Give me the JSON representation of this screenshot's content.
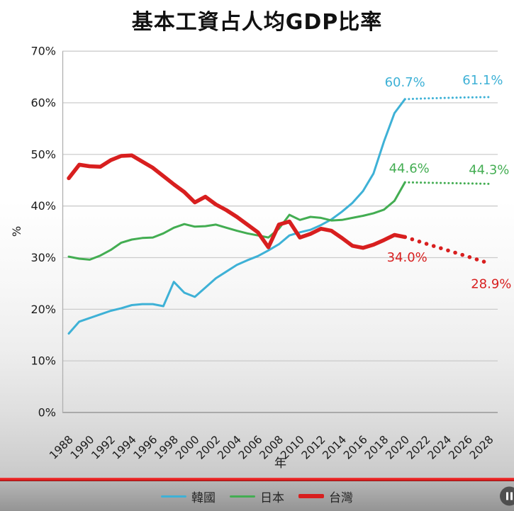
{
  "chart_data": {
    "type": "line",
    "title": "基本工資占人均GDP比率",
    "xlabel": "年",
    "ylabel": "%",
    "xlim": [
      1988,
      2028
    ],
    "ylim": [
      0,
      70
    ],
    "grid": "horizontal",
    "legend_position": "bottom",
    "x_ticks": [
      1988,
      1990,
      1992,
      1994,
      1996,
      1998,
      2000,
      2002,
      2004,
      2006,
      2008,
      2010,
      2012,
      2014,
      2016,
      2018,
      2020,
      2022,
      2024,
      2026,
      2028
    ],
    "y_ticks": [
      {
        "value": 0,
        "label": "0%"
      },
      {
        "value": 10,
        "label": "10%"
      },
      {
        "value": 20,
        "label": "20%"
      },
      {
        "value": 30,
        "label": "30%"
      },
      {
        "value": 40,
        "label": "40%"
      },
      {
        "value": 50,
        "label": "50%"
      },
      {
        "value": 60,
        "label": "60%"
      },
      {
        "value": 70,
        "label": "70%"
      }
    ],
    "series": [
      {
        "id": "korea",
        "name": "韓國",
        "color": "#3eb1d6",
        "line_width": 3,
        "years": [
          1988,
          1989,
          1990,
          1991,
          1992,
          1993,
          1994,
          1995,
          1996,
          1997,
          1998,
          1999,
          2000,
          2001,
          2002,
          2003,
          2004,
          2005,
          2006,
          2007,
          2008,
          2009,
          2010,
          2011,
          2012,
          2013,
          2014,
          2015,
          2016,
          2017,
          2018,
          2019,
          2020
        ],
        "values": [
          15.3,
          17.6,
          18.3,
          19.0,
          19.7,
          20.2,
          20.8,
          21.0,
          21.0,
          20.6,
          25.3,
          23.2,
          22.4,
          24.2,
          26.0,
          27.3,
          28.6,
          29.5,
          30.3,
          31.4,
          32.6,
          34.3,
          34.9,
          35.4,
          36.3,
          37.4,
          38.9,
          40.6,
          42.9,
          46.3,
          52.5,
          58.0,
          60.7
        ],
        "projection_style": "dotted",
        "projection_years": [
          2020,
          2022,
          2024,
          2026,
          2028
        ],
        "projection_values": [
          60.7,
          60.85,
          60.95,
          61.05,
          61.1
        ],
        "end_label": "60.7%",
        "projection_end_label": "61.1%"
      },
      {
        "id": "japan",
        "name": "日本",
        "color": "#43ad52",
        "line_width": 3,
        "years": [
          1988,
          1989,
          1990,
          1991,
          1992,
          1993,
          1994,
          1995,
          1996,
          1997,
          1998,
          1999,
          2000,
          2001,
          2002,
          2003,
          2004,
          2005,
          2006,
          2007,
          2008,
          2009,
          2010,
          2011,
          2012,
          2013,
          2014,
          2015,
          2016,
          2017,
          2018,
          2019,
          2020
        ],
        "values": [
          30.2,
          29.8,
          29.6,
          30.4,
          31.5,
          32.9,
          33.5,
          33.8,
          33.9,
          34.7,
          35.8,
          36.5,
          36.0,
          36.1,
          36.4,
          35.8,
          35.2,
          34.7,
          34.3,
          33.9,
          35.6,
          38.3,
          37.3,
          37.9,
          37.7,
          37.2,
          37.3,
          37.7,
          38.1,
          38.6,
          39.3,
          41.0,
          44.6
        ],
        "projection_style": "dotted",
        "projection_years": [
          2020,
          2022,
          2024,
          2026,
          2028
        ],
        "projection_values": [
          44.6,
          44.52,
          44.45,
          44.38,
          44.3
        ],
        "end_label": "44.6%",
        "projection_end_label": "44.3%"
      },
      {
        "id": "taiwan",
        "name": "台灣",
        "color": "#d81f1f",
        "line_width": 5.5,
        "years": [
          1988,
          1989,
          1990,
          1991,
          1992,
          1993,
          1994,
          1995,
          1996,
          1997,
          1998,
          1999,
          2000,
          2001,
          2002,
          2003,
          2004,
          2005,
          2006,
          2007,
          2008,
          2009,
          2010,
          2011,
          2012,
          2013,
          2014,
          2015,
          2016,
          2017,
          2018,
          2019,
          2020
        ],
        "values": [
          45.4,
          48.0,
          47.7,
          47.6,
          48.9,
          49.7,
          49.8,
          48.6,
          47.4,
          45.8,
          44.2,
          42.7,
          40.7,
          41.8,
          40.3,
          39.2,
          37.9,
          36.4,
          34.9,
          32.0,
          36.4,
          37.0,
          33.9,
          34.6,
          35.6,
          35.2,
          33.8,
          32.3,
          31.9,
          32.5,
          33.4,
          34.4,
          34.0
        ],
        "projection_style": "dotted",
        "projection_years": [
          2020,
          2022,
          2024,
          2026,
          2028
        ],
        "projection_values": [
          34.0,
          32.7,
          31.45,
          30.2,
          28.9
        ],
        "end_label": "34.0%",
        "projection_end_label": "28.9%"
      }
    ],
    "annotations": [
      {
        "text": "60.7%",
        "series": "韓國",
        "year": 2020.0,
        "value": 64.0
      },
      {
        "text": "61.1%",
        "series": "韓國",
        "year": 2027.4,
        "value": 64.4
      },
      {
        "text": "44.6%",
        "series": "日本",
        "year": 2020.4,
        "value": 47.3
      },
      {
        "text": "44.3%",
        "series": "日本",
        "year": 2028.0,
        "value": 47.0
      },
      {
        "text": "34.0%",
        "series": "台灣",
        "year": 2020.2,
        "value": 30.1
      },
      {
        "text": "28.9%",
        "series": "台灣",
        "year": 2028.2,
        "value": 24.9
      }
    ]
  },
  "video_player": {
    "pause_icon": "pause-icon",
    "progress_bar_color": "#e32222"
  }
}
